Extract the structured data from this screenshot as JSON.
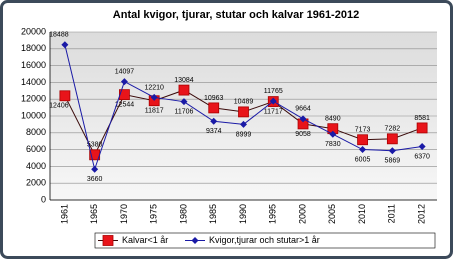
{
  "chart_data": {
    "type": "line",
    "title": "Antal kvigor, tjurar, stutar och kalvar 1961-2012",
    "categories": [
      "1961",
      "1965",
      "1970",
      "1975",
      "1980",
      "1985",
      "1990",
      "1995",
      "2000",
      "2005",
      "2010",
      "2011",
      "2012"
    ],
    "series": [
      {
        "name": "Kalvar<1 år",
        "color": "#e8141a",
        "values": [
          12406,
          5380,
          12544,
          11817,
          13084,
          10963,
          10489,
          11717,
          9058,
          8490,
          7173,
          7282,
          8581
        ]
      },
      {
        "name": "Kvigor,tjurar och stutar>1 år",
        "color": "#1a1aa6",
        "values": [
          18488,
          3660,
          14097,
          12210,
          11706,
          9374,
          8999,
          11765,
          9664,
          7830,
          6005,
          5869,
          6370
        ]
      }
    ],
    "ylim": [
      0,
      20000
    ],
    "yticks": [
      0,
      2000,
      4000,
      6000,
      8000,
      10000,
      12000,
      14000,
      16000,
      18000,
      20000
    ],
    "grid": true,
    "legend": "bottom"
  }
}
